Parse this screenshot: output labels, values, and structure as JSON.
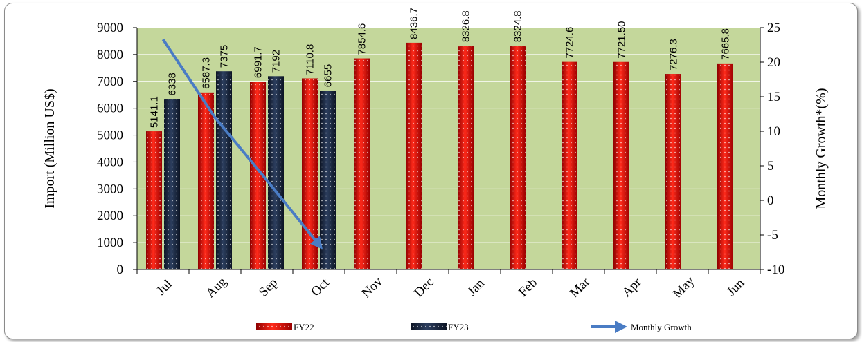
{
  "chart_data": {
    "type": "bar",
    "categories": [
      "Jul",
      "Aug",
      "Sep",
      "Oct",
      "Nov",
      "Dec",
      "Jan",
      "Feb",
      "Mar",
      "Apr",
      "May",
      "Jun"
    ],
    "series": [
      {
        "name": "FY22",
        "values": [
          5141.1,
          6587.3,
          6991.7,
          7110.8,
          7854.6,
          8436.7,
          8326.8,
          8324.8,
          7724.6,
          7721.5,
          7276.3,
          7665.8
        ],
        "labels": [
          "5141.1",
          "6587.3",
          "6991.7",
          "7110.8",
          "7854.6",
          "8436.7",
          "8326.8",
          "8324.8",
          "7724.6",
          "7721.50",
          "7276.3",
          "7665.8"
        ],
        "color": "#e01010"
      },
      {
        "name": "FY23",
        "values": [
          6338,
          7375,
          7192,
          6655,
          null,
          null,
          null,
          null,
          null,
          null,
          null,
          null
        ],
        "labels": [
          "6338",
          "7375",
          "7192",
          "6655",
          "",
          "",
          "",
          "",
          "",
          "",
          "",
          ""
        ],
        "color": "#1b2a45"
      }
    ],
    "line": {
      "name": "Monthly Growth",
      "axis": "right",
      "values": [
        23.3,
        12.0,
        2.9,
        -6.4,
        null,
        null,
        null,
        null,
        null,
        null,
        null,
        null
      ],
      "color": "#4a7cc4"
    },
    "ylabel": "Import (Million US$)",
    "y2label": "Monthly Growth*(%)",
    "ylim": [
      0,
      9000
    ],
    "yticks": [
      0,
      1000,
      2000,
      3000,
      4000,
      5000,
      6000,
      7000,
      8000,
      9000
    ],
    "y2lim": [
      -10,
      25
    ],
    "y2ticks": [
      -10,
      -5,
      0,
      5,
      10,
      15,
      20,
      25
    ],
    "plot_background": "#c4d79b",
    "grid": "horizontal",
    "legend": "bottom"
  }
}
